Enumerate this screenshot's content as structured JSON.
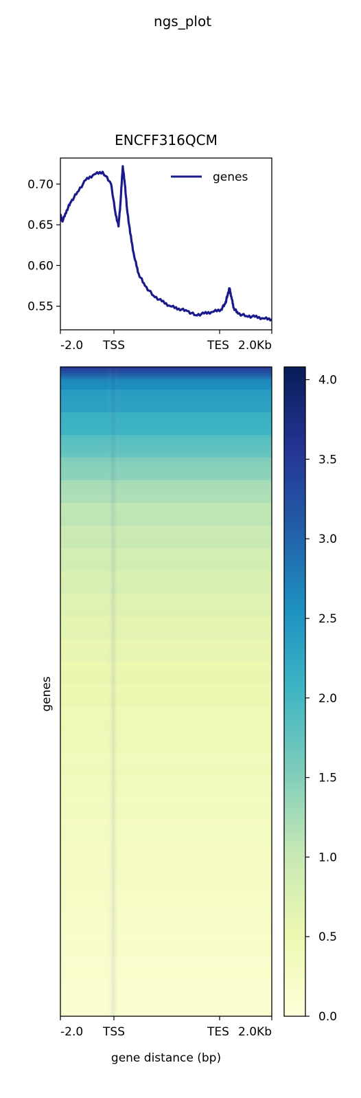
{
  "figure": {
    "suptitle": "ngs_plot"
  },
  "chart_data": [
    {
      "type": "line",
      "title": "ENCFF316QCM",
      "xlabel": "",
      "ylabel": "",
      "x_tick_labels": [
        "-2.0",
        "TSS",
        "TES",
        "2.0Kb"
      ],
      "ylim": [
        0.521,
        0.732
      ],
      "y_ticks": [
        0.55,
        0.6,
        0.65,
        0.7
      ],
      "y_tick_labels": [
        "0.55",
        "0.60",
        "0.65",
        "0.70"
      ],
      "legend": {
        "placement": "top-right",
        "entries": [
          "genes"
        ]
      },
      "grid": false,
      "series": [
        {
          "name": "genes",
          "color": "#1a1a8c",
          "x": [
            0,
            1,
            3,
            5,
            8,
            12,
            16,
            20,
            24,
            26,
            27.5,
            28.5,
            29.5,
            30.5,
            31.5,
            33,
            35,
            37,
            40,
            44,
            48,
            52,
            56,
            60,
            64,
            68,
            72,
            76,
            78,
            79,
            80,
            81,
            82,
            84,
            88,
            92,
            96,
            100
          ],
          "y": [
            0.662,
            0.654,
            0.668,
            0.678,
            0.69,
            0.705,
            0.712,
            0.715,
            0.7,
            0.665,
            0.648,
            0.68,
            0.722,
            0.7,
            0.67,
            0.64,
            0.61,
            0.59,
            0.575,
            0.563,
            0.556,
            0.55,
            0.547,
            0.544,
            0.539,
            0.541,
            0.543,
            0.546,
            0.553,
            0.563,
            0.572,
            0.56,
            0.548,
            0.541,
            0.538,
            0.537,
            0.535,
            0.534
          ]
        }
      ]
    },
    {
      "type": "heatmap",
      "title": "",
      "xlabel": "gene distance (bp)",
      "ylabel": "genes",
      "x_tick_labels": [
        "-2.0",
        "TSS",
        "TES",
        "2.0Kb"
      ],
      "colormap": "YlGnBu",
      "colorbar": {
        "range": [
          0.0,
          4.08
        ],
        "ticks": [
          0.0,
          0.5,
          1.0,
          1.5,
          2.0,
          2.5,
          3.0,
          3.5,
          4.0
        ],
        "tick_labels": [
          "0.0",
          "0.5",
          "1.0",
          "1.5",
          "2.0",
          "2.5",
          "3.0",
          "3.5",
          "4.0"
        ]
      },
      "row_profile_fraction": [
        0.0,
        0.02,
        0.05,
        0.1,
        0.15,
        0.2,
        0.3,
        0.4,
        0.5,
        0.6,
        0.7,
        0.8,
        0.9,
        1.0
      ],
      "row_profile_value": [
        3.6,
        2.6,
        2.35,
        2.0,
        1.5,
        1.15,
        0.85,
        0.62,
        0.5,
        0.4,
        0.32,
        0.25,
        0.18,
        0.1
      ]
    }
  ]
}
